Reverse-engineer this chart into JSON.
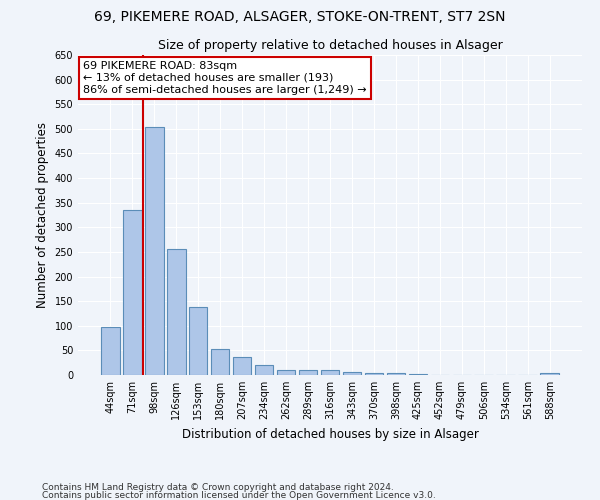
{
  "title_line1": "69, PIKEMERE ROAD, ALSAGER, STOKE-ON-TRENT, ST7 2SN",
  "title_line2": "Size of property relative to detached houses in Alsager",
  "xlabel": "Distribution of detached houses by size in Alsager",
  "ylabel": "Number of detached properties",
  "categories": [
    "44sqm",
    "71sqm",
    "98sqm",
    "126sqm",
    "153sqm",
    "180sqm",
    "207sqm",
    "234sqm",
    "262sqm",
    "289sqm",
    "316sqm",
    "343sqm",
    "370sqm",
    "398sqm",
    "425sqm",
    "452sqm",
    "479sqm",
    "506sqm",
    "534sqm",
    "561sqm",
    "588sqm"
  ],
  "values": [
    97,
    335,
    504,
    255,
    138,
    53,
    37,
    21,
    10,
    10,
    10,
    7,
    5,
    5,
    2,
    1,
    1,
    1,
    1,
    1,
    5
  ],
  "bar_color": "#aec6e8",
  "bar_edge_color": "#5b8db8",
  "vline_x": 1.5,
  "vline_color": "#cc0000",
  "annotation_text": "69 PIKEMERE ROAD: 83sqm\n← 13% of detached houses are smaller (193)\n86% of semi-detached houses are larger (1,249) →",
  "annotation_box_color": "#ffffff",
  "annotation_box_edge": "#cc0000",
  "ylim": [
    0,
    650
  ],
  "yticks": [
    0,
    50,
    100,
    150,
    200,
    250,
    300,
    350,
    400,
    450,
    500,
    550,
    600,
    650
  ],
  "background_color": "#f0f4fa",
  "plot_bg_color": "#f0f4fa",
  "footer_line1": "Contains HM Land Registry data © Crown copyright and database right 2024.",
  "footer_line2": "Contains public sector information licensed under the Open Government Licence v3.0.",
  "title_fontsize": 10,
  "subtitle_fontsize": 9,
  "axis_label_fontsize": 8.5,
  "tick_fontsize": 7,
  "annotation_fontsize": 8,
  "footer_fontsize": 6.5
}
